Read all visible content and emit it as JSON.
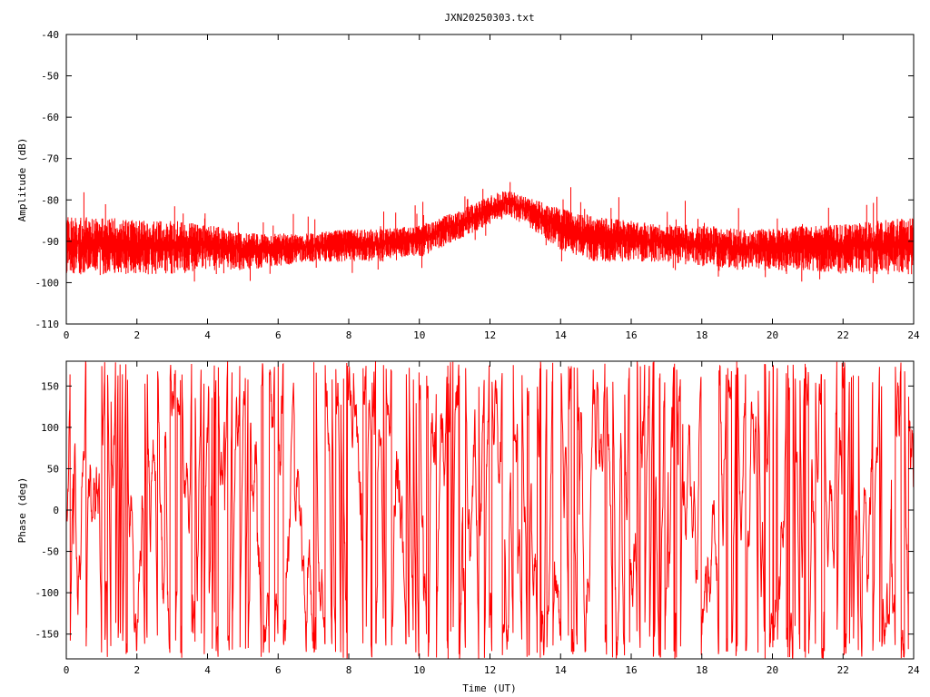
{
  "title": "JXN20250303.txt",
  "colors": {
    "series": "#ff0000",
    "axes": "#000000",
    "background": "#ffffff"
  },
  "chart_data": [
    {
      "type": "line",
      "name": "amplitude-panel",
      "ylabel": "Amplitude (dB)",
      "xlabel": "",
      "xlim": [
        0,
        24
      ],
      "ylim": [
        -110,
        -40
      ],
      "xticks": [
        0,
        2,
        4,
        6,
        8,
        10,
        12,
        14,
        16,
        18,
        20,
        22,
        24
      ],
      "yticks": [
        -110,
        -100,
        -90,
        -80,
        -70,
        -60,
        -50,
        -40
      ],
      "grid": false,
      "series": [
        {
          "color": "#ff0000",
          "envelope": {
            "x": [
              0,
              1,
              2,
              3,
              4,
              5,
              6,
              7,
              8,
              9,
              10,
              11,
              12,
              12.5,
              13,
              14,
              15,
              16,
              17,
              18,
              19,
              20,
              21,
              22,
              23,
              24
            ],
            "lower": [
              -98,
              -98,
              -98,
              -98,
              -97,
              -97,
              -96,
              -95,
              -95,
              -95,
              -94,
              -90,
              -86,
              -84,
              -86,
              -92,
              -95,
              -95,
              -95,
              -96,
              -97,
              -97,
              -97,
              -98,
              -98,
              -98
            ],
            "upper": [
              -84,
              -84,
              -85,
              -85,
              -86,
              -88,
              -88,
              -88,
              -87,
              -87,
              -86,
              -83,
              -79,
              -77,
              -79,
              -82,
              -84,
              -85,
              -86,
              -86,
              -87,
              -87,
              -86,
              -86,
              -85,
              -84
            ]
          }
        }
      ]
    },
    {
      "type": "line",
      "name": "phase-panel",
      "ylabel": "Phase (deg)",
      "xlabel": "Time (UT)",
      "xlim": [
        0,
        24
      ],
      "ylim": [
        -180,
        180
      ],
      "xticks": [
        0,
        2,
        4,
        6,
        8,
        10,
        12,
        14,
        16,
        18,
        20,
        22,
        24
      ],
      "yticks": [
        -150,
        -100,
        -50,
        0,
        50,
        100,
        150
      ],
      "grid": false,
      "series": [
        {
          "color": "#ff0000",
          "range": [
            -180,
            180
          ]
        }
      ]
    }
  ]
}
